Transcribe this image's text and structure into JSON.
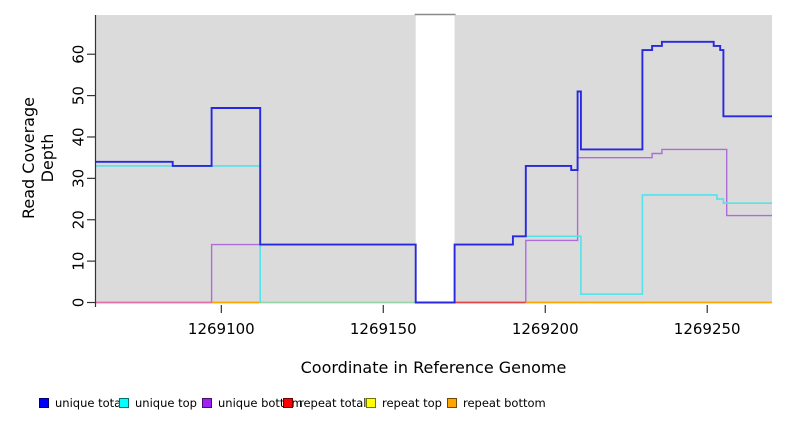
{
  "chart_data": {
    "type": "line",
    "subtype": "step-coverage",
    "title": "",
    "xlabel": "Coordinate in Reference Genome",
    "ylabel": "Read Coverage Depth",
    "xlim": [
      1269061,
      1269270
    ],
    "ylim": [
      0,
      69.5
    ],
    "x_ticks": [
      1269100,
      1269150,
      1269200,
      1269250
    ],
    "y_ticks": [
      0,
      10,
      20,
      30,
      40,
      50,
      60
    ],
    "grid": false,
    "plot_bg": "#dbdbdb",
    "gap_region": {
      "x1": 1269160,
      "x2": 1269172
    },
    "series": [
      {
        "name": "unique total",
        "color": "#2828e0",
        "width": 1.9,
        "segments": [
          [
            [
              1269061,
              34
            ],
            [
              1269085,
              33
            ],
            [
              1269097,
              47
            ],
            [
              1269112,
              14
            ],
            [
              1269160,
              0
            ],
            [
              1269172,
              14
            ],
            [
              1269190,
              16
            ],
            [
              1269194,
              33
            ],
            [
              1269208,
              32
            ],
            [
              1269210,
              51
            ],
            [
              1269211,
              37
            ],
            [
              1269230,
              61
            ],
            [
              1269233,
              62
            ],
            [
              1269236,
              63
            ],
            [
              1269252,
              62
            ],
            [
              1269254,
              61
            ],
            [
              1269255,
              45
            ],
            [
              1269270,
              45
            ]
          ]
        ]
      },
      {
        "name": "unique top",
        "color": "#55e2ea",
        "width": 1.6,
        "segments": [
          [
            [
              1269061,
              33
            ],
            [
              1269112,
              0
            ]
          ],
          [
            [
              1269172,
              0
            ],
            [
              1269172,
              14
            ],
            [
              1269190,
              16
            ],
            [
              1269211,
              2
            ],
            [
              1269230,
              26
            ],
            [
              1269253,
              25
            ],
            [
              1269255,
              24
            ],
            [
              1269270,
              24
            ]
          ]
        ]
      },
      {
        "name": "unique bottom",
        "color": "#ae6cd8",
        "width": 1.4,
        "segments": [
          [
            [
              1269097,
              0
            ],
            [
              1269097,
              14
            ],
            [
              1269160,
              14
            ]
          ],
          [
            [
              1269194,
              0
            ],
            [
              1269194,
              15
            ],
            [
              1269210,
              35
            ],
            [
              1269233,
              36
            ],
            [
              1269236,
              37
            ],
            [
              1269256,
              21
            ],
            [
              1269270,
              21
            ]
          ]
        ]
      },
      {
        "name": "repeat total",
        "color": "#ff0000",
        "width": 1.4,
        "segments": [
          [
            [
              1269061,
              0
            ],
            [
              1269160,
              0
            ]
          ],
          [
            [
              1269172,
              0
            ],
            [
              1269270,
              0
            ]
          ]
        ]
      },
      {
        "name": "repeat top",
        "color": "#ffff00",
        "width": 1.4,
        "segments": [
          [
            [
              1269061,
              0
            ],
            [
              1269160,
              0
            ]
          ],
          [
            [
              1269172,
              0
            ],
            [
              1269270,
              0
            ]
          ]
        ]
      },
      {
        "name": "repeat bottom",
        "color": "#ffa500",
        "width": 1.4,
        "segments": [
          [
            [
              1269061,
              0
            ],
            [
              1269160,
              0
            ]
          ],
          [
            [
              1269172,
              0
            ],
            [
              1269270,
              0
            ]
          ]
        ]
      }
    ],
    "zero_line_render": [
      {
        "x1": 1269061,
        "x2": 1269097,
        "color": "#e26fa5"
      },
      {
        "x1": 1269097,
        "x2": 1269112,
        "color": "#ffa500"
      },
      {
        "x1": 1269112,
        "x2": 1269160,
        "color": "#98d6a8"
      },
      {
        "x1": 1269172,
        "x2": 1269194,
        "color": "#e04545"
      },
      {
        "x1": 1269194,
        "x2": 1269270,
        "color": "#ffa500"
      }
    ],
    "legend": [
      {
        "label": "unique total",
        "color": "#0000ff"
      },
      {
        "label": "unique top",
        "color": "#00ffff"
      },
      {
        "label": "unique bottom",
        "color": "#a020f0"
      },
      {
        "label": "repeat total",
        "color": "#ff0000"
      },
      {
        "label": "repeat top",
        "color": "#ffff00"
      },
      {
        "label": "repeat bottom",
        "color": "#ffa500"
      }
    ],
    "legend_position": "bottom"
  }
}
